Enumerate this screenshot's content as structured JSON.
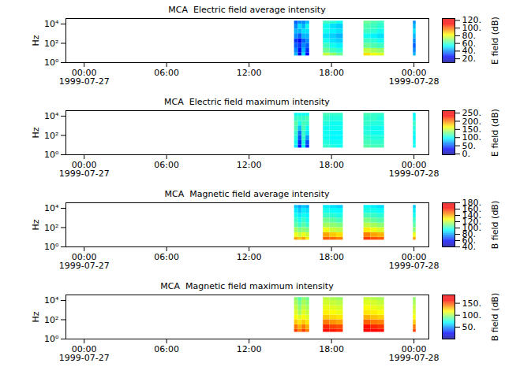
{
  "chart_data": [
    {
      "type": "heatmap",
      "title": "MCA  Electric field average intensity",
      "y_label": "Hz",
      "log": "y",
      "xlim": [
        "1999-07-26T22:40",
        "1999-07-28T01:05"
      ],
      "xticks": [
        {
          "value": "1999-07-27T00:00",
          "label": "00:00\n1999-07-27"
        },
        {
          "value": "1999-07-27T06:00",
          "label": "06:00"
        },
        {
          "value": "1999-07-27T12:00",
          "label": "12:00"
        },
        {
          "value": "1999-07-27T18:00",
          "label": "18:00"
        },
        {
          "value": "1999-07-28T00:00",
          "label": "00:00\n1999-07-28"
        }
      ],
      "ylim": [
        1,
        37000
      ],
      "yticks": [
        {
          "value": 1,
          "label": "10⁰"
        },
        {
          "value": 100,
          "label": "10²"
        },
        {
          "value": 10000,
          "label": "10⁴"
        }
      ],
      "time_start": [
        "1999-07-27T15:18",
        "1999-07-27T15:35",
        "1999-07-27T15:51",
        "1999-07-27T16:08",
        "1999-07-27T17:24",
        "1999-07-27T17:53",
        "1999-07-27T18:22",
        "1999-07-27T20:21",
        "1999-07-27T20:51",
        "1999-07-27T21:21",
        "1999-07-27T23:57"
      ],
      "time_end": [
        "1999-07-27T15:35",
        "1999-07-27T15:51",
        "1999-07-27T16:08",
        "1999-07-27T16:24",
        "1999-07-27T17:53",
        "1999-07-27T18:22",
        "1999-07-27T18:51",
        "1999-07-27T20:51",
        "1999-07-27T21:21",
        "1999-07-27T21:51",
        "1999-07-28T00:09"
      ],
      "freq_edges": [
        5,
        10,
        30,
        100,
        300,
        1000,
        3000,
        10000,
        20000
      ],
      "values": [
        [
          45,
          40,
          35,
          30,
          40,
          45,
          40,
          35
        ],
        [
          20,
          25,
          30,
          25,
          35,
          45,
          50,
          40
        ],
        [
          50,
          45,
          40,
          35,
          45,
          50,
          45,
          40
        ],
        [
          25,
          30,
          35,
          40,
          45,
          50,
          55,
          45
        ],
        [
          75,
          65,
          60,
          55,
          50,
          55,
          55,
          60
        ],
        [
          70,
          60,
          55,
          50,
          48,
          52,
          50,
          58
        ],
        [
          65,
          58,
          52,
          48,
          45,
          50,
          48,
          55
        ],
        [
          85,
          75,
          65,
          60,
          55,
          60,
          62,
          65
        ],
        [
          80,
          72,
          62,
          58,
          52,
          58,
          60,
          62
        ],
        [
          78,
          70,
          60,
          55,
          50,
          55,
          58,
          60
        ],
        [
          45,
          40,
          35,
          40,
          45,
          50,
          45,
          40
        ]
      ],
      "colorbar_label": "E field (dB)",
      "colorbar_range": [
        10,
        125
      ],
      "colorbar_ticks": [
        {
          "value": 20,
          "label": "20."
        },
        {
          "value": 40,
          "label": "40."
        },
        {
          "value": 60,
          "label": "60."
        },
        {
          "value": 80,
          "label": "80."
        },
        {
          "value": 100,
          "label": "100."
        },
        {
          "value": 120,
          "label": "120."
        }
      ]
    },
    {
      "type": "heatmap",
      "title": "MCA  Electric field maximum intensity",
      "y_label": "Hz",
      "log": "y",
      "xlim": [
        "1999-07-26T22:40",
        "1999-07-28T01:05"
      ],
      "xticks": [
        {
          "value": "1999-07-27T00:00",
          "label": "00:00\n1999-07-27"
        },
        {
          "value": "1999-07-27T06:00",
          "label": "06:00"
        },
        {
          "value": "1999-07-27T12:00",
          "label": "12:00"
        },
        {
          "value": "1999-07-27T18:00",
          "label": "18:00"
        },
        {
          "value": "1999-07-28T00:00",
          "label": "00:00\n1999-07-28"
        }
      ],
      "ylim": [
        1,
        37000
      ],
      "yticks": [
        {
          "value": 1,
          "label": "10⁰"
        },
        {
          "value": 100,
          "label": "10²"
        },
        {
          "value": 10000,
          "label": "10⁴"
        }
      ],
      "time_start": [
        "1999-07-27T15:18",
        "1999-07-27T15:35",
        "1999-07-27T15:51",
        "1999-07-27T16:08",
        "1999-07-27T17:24",
        "1999-07-27T17:53",
        "1999-07-27T18:22",
        "1999-07-27T20:21",
        "1999-07-27T20:51",
        "1999-07-27T21:21",
        "1999-07-27T23:57"
      ],
      "time_end": [
        "1999-07-27T15:35",
        "1999-07-27T15:51",
        "1999-07-27T16:08",
        "1999-07-27T16:24",
        "1999-07-27T17:53",
        "1999-07-27T18:22",
        "1999-07-27T18:51",
        "1999-07-27T20:51",
        "1999-07-27T21:21",
        "1999-07-27T21:51",
        "1999-07-28T00:09"
      ],
      "freq_edges": [
        5,
        10,
        30,
        100,
        300,
        1000,
        3000,
        10000,
        20000
      ],
      "values": [
        [
          90,
          100,
          105,
          110,
          115,
          120,
          110,
          100
        ],
        [
          30,
          40,
          50,
          60,
          80,
          100,
          110,
          100
        ],
        [
          100,
          105,
          110,
          110,
          115,
          115,
          110,
          100
        ],
        [
          40,
          50,
          70,
          90,
          100,
          110,
          115,
          100
        ],
        [
          110,
          105,
          100,
          100,
          100,
          105,
          110,
          115
        ],
        [
          105,
          100,
          95,
          95,
          100,
          100,
          105,
          110
        ],
        [
          100,
          100,
          95,
          95,
          100,
          100,
          105,
          110
        ],
        [
          120,
          115,
          110,
          105,
          105,
          110,
          110,
          115
        ],
        [
          115,
          110,
          105,
          100,
          100,
          105,
          110,
          110
        ],
        [
          115,
          110,
          105,
          100,
          100,
          105,
          105,
          110
        ],
        [
          100,
          100,
          95,
          100,
          105,
          110,
          100,
          95
        ]
      ],
      "colorbar_label": "E field (dB)",
      "colorbar_range": [
        -5,
        265
      ],
      "colorbar_ticks": [
        {
          "value": 0,
          "label": "0."
        },
        {
          "value": 50,
          "label": "50."
        },
        {
          "value": 100,
          "label": "100."
        },
        {
          "value": 150,
          "label": "150."
        },
        {
          "value": 200,
          "label": "200."
        },
        {
          "value": 250,
          "label": "250."
        }
      ]
    },
    {
      "type": "heatmap",
      "title": "MCA  Magnetic field average intensity",
      "y_label": "Hz",
      "log": "y",
      "xlim": [
        "1999-07-26T22:40",
        "1999-07-28T01:05"
      ],
      "xticks": [
        {
          "value": "1999-07-27T00:00",
          "label": "00:00\n1999-07-27"
        },
        {
          "value": "1999-07-27T06:00",
          "label": "06:00"
        },
        {
          "value": "1999-07-27T12:00",
          "label": "12:00"
        },
        {
          "value": "1999-07-27T18:00",
          "label": "18:00"
        },
        {
          "value": "1999-07-28T00:00",
          "label": "00:00\n1999-07-28"
        }
      ],
      "ylim": [
        1,
        37000
      ],
      "yticks": [
        {
          "value": 1,
          "label": "10⁰"
        },
        {
          "value": 100,
          "label": "10²"
        },
        {
          "value": 10000,
          "label": "10⁴"
        }
      ],
      "time_start": [
        "1999-07-27T15:18",
        "1999-07-27T15:35",
        "1999-07-27T15:51",
        "1999-07-27T16:08",
        "1999-07-27T17:24",
        "1999-07-27T17:53",
        "1999-07-27T18:22",
        "1999-07-27T20:21",
        "1999-07-27T20:51",
        "1999-07-27T21:21",
        "1999-07-27T23:57"
      ],
      "time_end": [
        "1999-07-27T15:35",
        "1999-07-27T15:51",
        "1999-07-27T16:08",
        "1999-07-27T16:24",
        "1999-07-27T17:53",
        "1999-07-27T18:22",
        "1999-07-27T18:51",
        "1999-07-27T20:51",
        "1999-07-27T21:21",
        "1999-07-27T21:51",
        "1999-07-28T00:09"
      ],
      "freq_edges": [
        5,
        10,
        30,
        100,
        300,
        1000,
        3000,
        10000,
        20000
      ],
      "values": [
        [
          140,
          125,
          115,
          105,
          100,
          95,
          90,
          85
        ],
        [
          135,
          120,
          110,
          100,
          95,
          90,
          85,
          80
        ],
        [
          140,
          125,
          112,
          105,
          100,
          95,
          90,
          85
        ],
        [
          130,
          120,
          110,
          100,
          95,
          92,
          88,
          82
        ],
        [
          150,
          140,
          125,
          115,
          108,
          100,
          95,
          90
        ],
        [
          148,
          135,
          120,
          112,
          105,
          98,
          93,
          88
        ],
        [
          145,
          132,
          118,
          110,
          102,
          96,
          92,
          86
        ],
        [
          155,
          145,
          130,
          118,
          110,
          102,
          96,
          92
        ],
        [
          152,
          140,
          125,
          115,
          106,
          100,
          95,
          90
        ],
        [
          150,
          138,
          122,
          112,
          104,
          98,
          93,
          88
        ],
        [
          140,
          125,
          112,
          105,
          100,
          95,
          90,
          85
        ]
      ],
      "colorbar_label": "B field (dB)",
      "colorbar_range": [
        40,
        180
      ],
      "colorbar_ticks": [
        {
          "value": 40,
          "label": "40."
        },
        {
          "value": 60,
          "label": "60."
        },
        {
          "value": 80,
          "label": "80."
        },
        {
          "value": 100,
          "label": "100."
        },
        {
          "value": 120,
          "label": "120."
        },
        {
          "value": 140,
          "label": "140."
        },
        {
          "value": 160,
          "label": "160."
        },
        {
          "value": 180,
          "label": "180."
        }
      ]
    },
    {
      "type": "heatmap",
      "title": "MCA  Magnetic field maximum intensity",
      "y_label": "Hz",
      "log": "y",
      "xlim": [
        "1999-07-26T22:40",
        "1999-07-28T01:05"
      ],
      "xticks": [
        {
          "value": "1999-07-27T00:00",
          "label": "00:00\n1999-07-27"
        },
        {
          "value": "1999-07-27T06:00",
          "label": "06:00"
        },
        {
          "value": "1999-07-27T12:00",
          "label": "12:00"
        },
        {
          "value": "1999-07-27T18:00",
          "label": "18:00"
        },
        {
          "value": "1999-07-28T00:00",
          "label": "00:00\n1999-07-28"
        }
      ],
      "ylim": [
        1,
        37000
      ],
      "yticks": [
        {
          "value": 1,
          "label": "10⁰"
        },
        {
          "value": 100,
          "label": "10²"
        },
        {
          "value": 10000,
          "label": "10⁴"
        }
      ],
      "time_start": [
        "1999-07-27T15:18",
        "1999-07-27T15:35",
        "1999-07-27T15:51",
        "1999-07-27T16:08",
        "1999-07-27T17:24",
        "1999-07-27T17:53",
        "1999-07-27T18:22",
        "1999-07-27T20:21",
        "1999-07-27T20:51",
        "1999-07-27T21:21",
        "1999-07-27T23:57"
      ],
      "time_end": [
        "1999-07-27T15:35",
        "1999-07-27T15:51",
        "1999-07-27T16:08",
        "1999-07-27T16:24",
        "1999-07-27T17:53",
        "1999-07-27T18:22",
        "1999-07-27T18:51",
        "1999-07-27T20:51",
        "1999-07-27T21:21",
        "1999-07-27T21:51",
        "1999-07-28T00:09"
      ],
      "freq_edges": [
        5,
        10,
        30,
        100,
        300,
        1000,
        3000,
        10000,
        20000
      ],
      "values": [
        [
          150,
          140,
          125,
          115,
          110,
          105,
          100,
          95
        ],
        [
          140,
          130,
          120,
          110,
          100,
          95,
          90,
          85
        ],
        [
          150,
          140,
          125,
          115,
          110,
          105,
          100,
          95
        ],
        [
          140,
          130,
          120,
          110,
          105,
          100,
          95,
          90
        ],
        [
          160,
          155,
          140,
          125,
          118,
          112,
          108,
          104
        ],
        [
          158,
          150,
          135,
          122,
          115,
          110,
          105,
          100
        ],
        [
          155,
          148,
          132,
          120,
          112,
          108,
          103,
          98
        ],
        [
          165,
          160,
          145,
          130,
          120,
          115,
          110,
          105
        ],
        [
          162,
          155,
          140,
          126,
          118,
          112,
          108,
          102
        ],
        [
          160,
          152,
          138,
          124,
          115,
          110,
          105,
          100
        ],
        [
          150,
          140,
          125,
          115,
          110,
          105,
          100,
          95
        ]
      ],
      "colorbar_label": "B field (dB)",
      "colorbar_range": [
        0,
        185
      ],
      "colorbar_ticks": [
        {
          "value": 50,
          "label": "50."
        },
        {
          "value": 100,
          "label": "100."
        },
        {
          "value": 150,
          "label": "150."
        }
      ]
    }
  ]
}
